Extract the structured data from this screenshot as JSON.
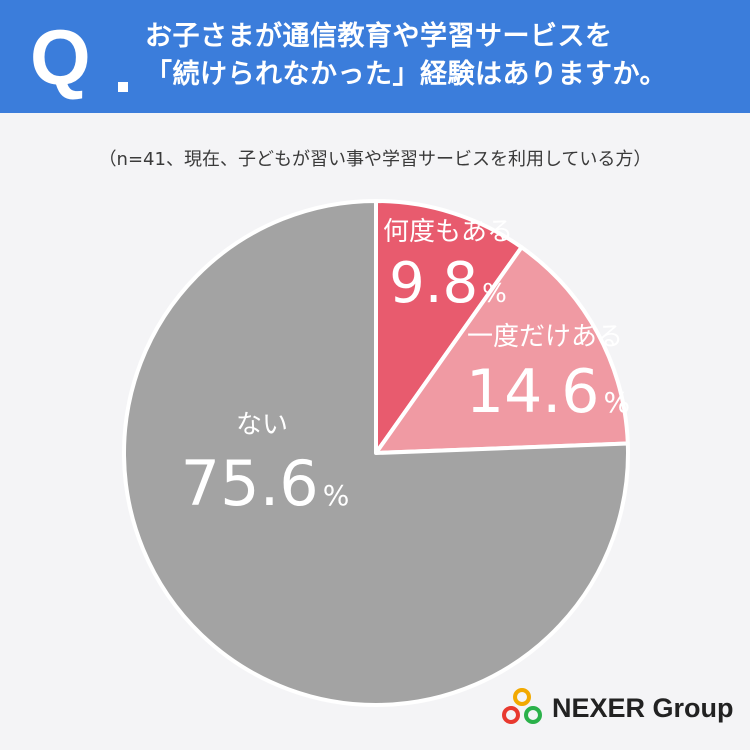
{
  "header": {
    "q_mark": "Q",
    "question_line1": "お子さまが通信教育や学習サービスを",
    "question_line2": "「続けられなかった」経験はありますか。",
    "color": "#3b7ddb"
  },
  "note": "（n=41、現在、子どもが習い事や学習サービスを利用している方）",
  "chart_data": {
    "type": "pie",
    "start_angle_deg": 0,
    "direction": "clockwise",
    "slices": [
      {
        "label": "何度もある",
        "value": 9.8,
        "value_text": "9.8",
        "color": "#e85b6e"
      },
      {
        "label": "一度だけある",
        "value": 14.6,
        "value_text": "14.6",
        "color": "#f09aa3"
      },
      {
        "label": "ない",
        "value": 75.6,
        "value_text": "75.6",
        "color": "#a3a3a3"
      }
    ],
    "unit": "%"
  },
  "logo": {
    "text": "NEXER Group",
    "icon": "nexer-rings-logo"
  }
}
